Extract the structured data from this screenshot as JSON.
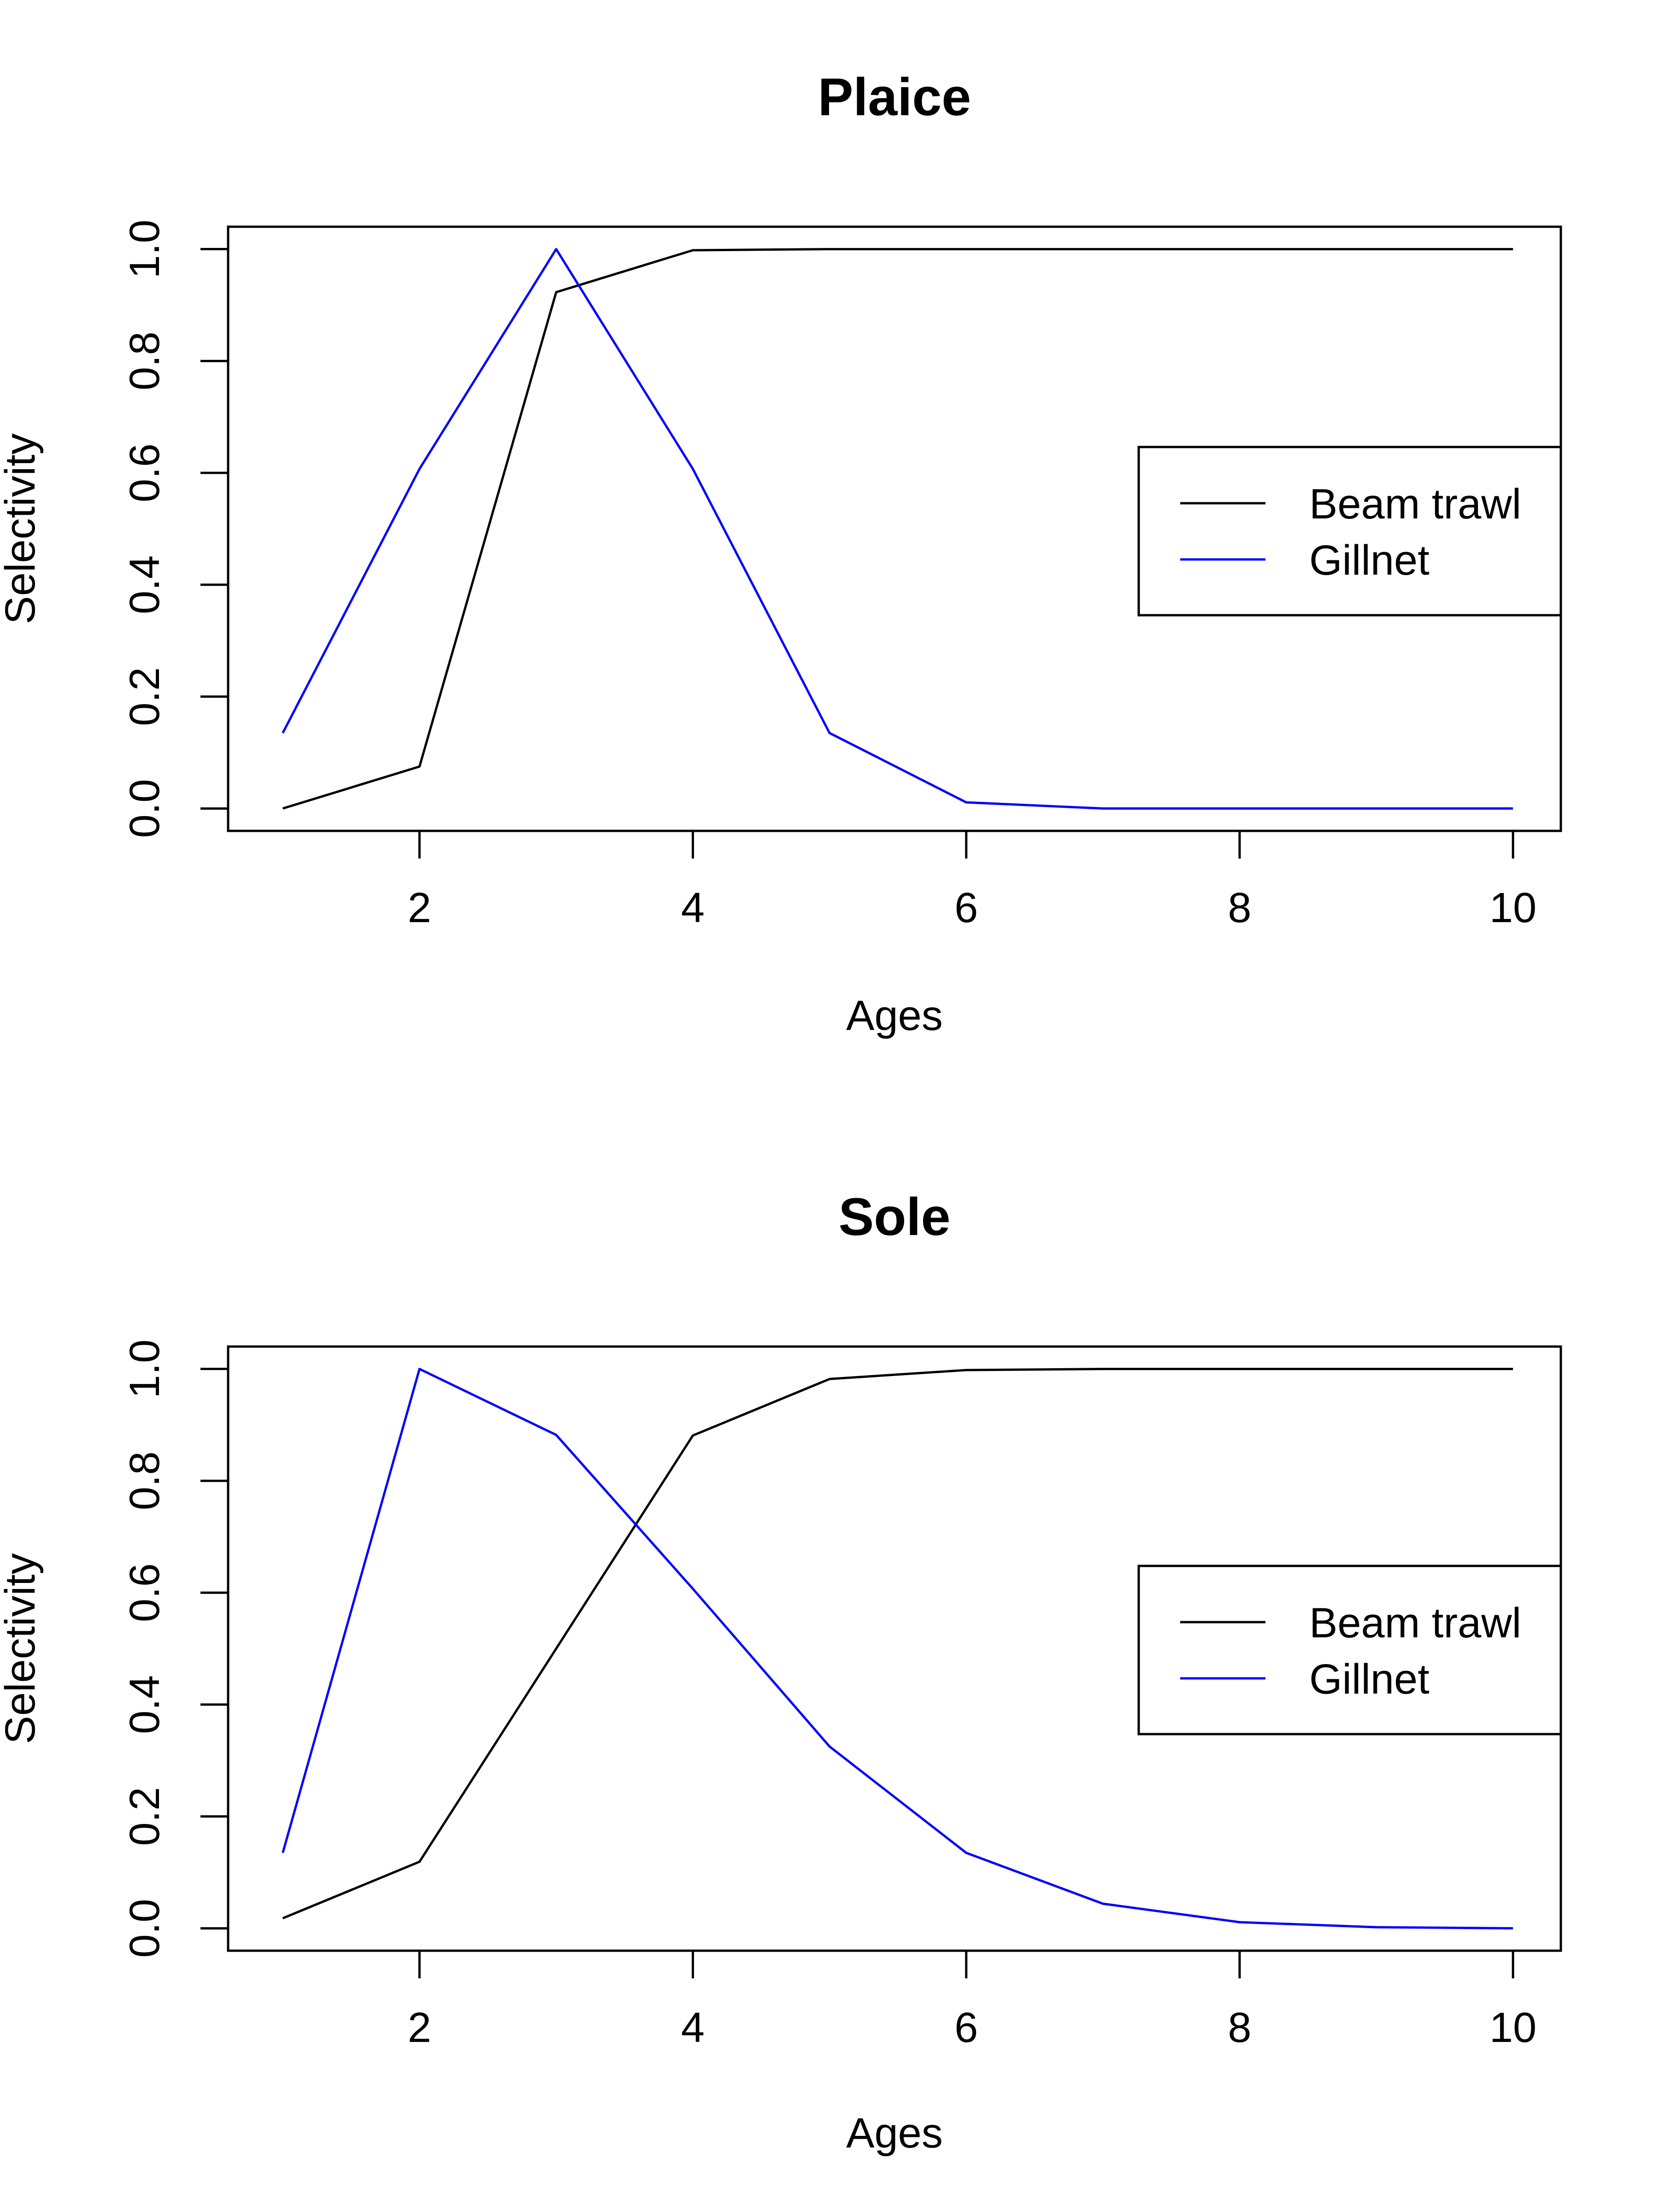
{
  "chart_data": [
    {
      "type": "line",
      "title": "Plaice",
      "xlabel": "Ages",
      "ylabel": "Selectivity",
      "xlim": [
        0.6,
        10.35
      ],
      "ylim": [
        -0.04,
        1.04
      ],
      "x_ticks": [
        2,
        4,
        6,
        8,
        10
      ],
      "y_ticks": [
        0.0,
        0.2,
        0.4,
        0.6,
        0.8,
        1.0
      ],
      "x_tick_labels": [
        "2",
        "4",
        "6",
        "8",
        "10"
      ],
      "y_tick_labels": [
        "0.0",
        "0.2",
        "0.4",
        "0.6",
        "0.8",
        "1.0"
      ],
      "grid": false,
      "legend_position": "right",
      "x": [
        1,
        2,
        3,
        4,
        5,
        6,
        7,
        8,
        9,
        10
      ],
      "series": [
        {
          "name": "Beam trawl",
          "color": "#000000",
          "values": [
            0.0,
            0.075,
            0.923,
            0.998,
            1.0,
            1.0,
            1.0,
            1.0,
            1.0,
            1.0
          ]
        },
        {
          "name": "Gillnet",
          "color": "#0000ff",
          "values": [
            0.135,
            0.607,
            1.0,
            0.607,
            0.135,
            0.011,
            0.0,
            0.0,
            0.0,
            0.0
          ]
        }
      ]
    },
    {
      "type": "line",
      "title": "Sole",
      "xlabel": "Ages",
      "ylabel": "Selectivity",
      "xlim": [
        0.6,
        10.35
      ],
      "ylim": [
        -0.04,
        1.04
      ],
      "x_ticks": [
        2,
        4,
        6,
        8,
        10
      ],
      "y_ticks": [
        0.0,
        0.2,
        0.4,
        0.6,
        0.8,
        1.0
      ],
      "x_tick_labels": [
        "2",
        "4",
        "6",
        "8",
        "10"
      ],
      "y_tick_labels": [
        "0.0",
        "0.2",
        "0.4",
        "0.6",
        "0.8",
        "1.0"
      ],
      "grid": false,
      "legend_position": "right",
      "x": [
        1,
        2,
        3,
        4,
        5,
        6,
        7,
        8,
        9,
        10
      ],
      "series": [
        {
          "name": "Beam trawl",
          "color": "#000000",
          "values": [
            0.018,
            0.119,
            0.5,
            0.881,
            0.982,
            0.998,
            1.0,
            1.0,
            1.0,
            1.0
          ]
        },
        {
          "name": "Gillnet",
          "color": "#0000ff",
          "values": [
            0.135,
            1.0,
            0.882,
            0.607,
            0.325,
            0.135,
            0.044,
            0.011,
            0.002,
            0.0
          ]
        }
      ]
    }
  ]
}
